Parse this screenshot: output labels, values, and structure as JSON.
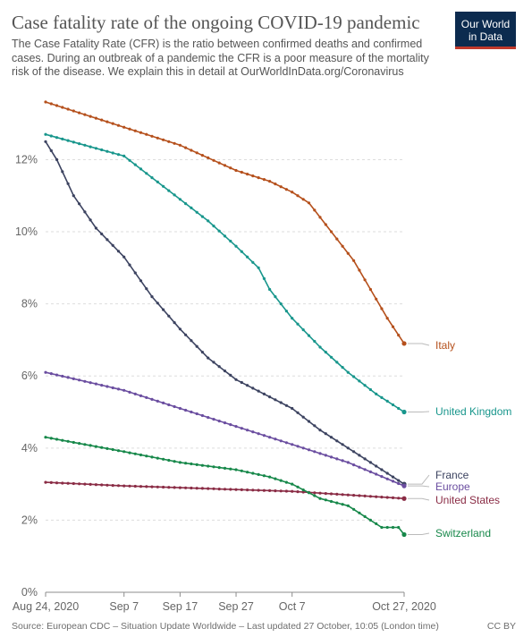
{
  "header": {
    "title": "Case fatality rate of the ongoing COVID-19 pandemic",
    "subtitle": "The Case Fatality Rate (CFR) is the ratio between confirmed deaths and confirmed cases. During an outbreak of a pandemic the CFR is a poor measure of the mortality risk of the disease. We explain this in detail at OurWorldInData.org/Coronavirus",
    "logo_line1": "Our World",
    "logo_line2": "in Data"
  },
  "footer": {
    "source": "Source: European CDC – Situation Update Worldwide – Last updated 27 October, 10:05 (London time)",
    "license": "CC BY"
  },
  "chart_data": {
    "type": "line",
    "title": "Case fatality rate of the ongoing COVID-19 pandemic",
    "x_ticks": [
      {
        "date": "2020-08-24",
        "label": "Aug 24, 2020"
      },
      {
        "date": "2020-09-07",
        "label": "Sep 7"
      },
      {
        "date": "2020-09-17",
        "label": "Sep 17"
      },
      {
        "date": "2020-09-27",
        "label": "Sep 27"
      },
      {
        "date": "2020-10-07",
        "label": "Oct 7"
      },
      {
        "date": "2020-10-27",
        "label": "Oct 27, 2020"
      }
    ],
    "xlim": [
      "2020-08-24",
      "2020-10-27"
    ],
    "y_ticks": [
      {
        "value": 0,
        "label": "0%"
      },
      {
        "value": 2,
        "label": "2%"
      },
      {
        "value": 4,
        "label": "4%"
      },
      {
        "value": 6,
        "label": "6%"
      },
      {
        "value": 8,
        "label": "8%"
      },
      {
        "value": 10,
        "label": "10%"
      },
      {
        "value": 12,
        "label": "12%"
      }
    ],
    "ylim": [
      0,
      13.5
    ],
    "grid": "horizontal-dashed",
    "legend": "right-end-labels",
    "series": [
      {
        "name": "Italy",
        "color": "#b5501c",
        "points": [
          [
            "2020-08-24",
            13.6
          ],
          [
            "2020-08-30",
            13.3
          ],
          [
            "2020-09-07",
            12.9
          ],
          [
            "2020-09-17",
            12.4
          ],
          [
            "2020-09-27",
            11.7
          ],
          [
            "2020-10-03",
            11.4
          ],
          [
            "2020-10-07",
            11.1
          ],
          [
            "2020-10-10",
            10.8
          ],
          [
            "2020-10-14",
            10.0
          ],
          [
            "2020-10-18",
            9.2
          ],
          [
            "2020-10-21",
            8.4
          ],
          [
            "2020-10-24",
            7.6
          ],
          [
            "2020-10-27",
            6.9
          ]
        ]
      },
      {
        "name": "United Kingdom",
        "color": "#18968c",
        "points": [
          [
            "2020-08-24",
            12.7
          ],
          [
            "2020-08-31",
            12.4
          ],
          [
            "2020-09-07",
            12.1
          ],
          [
            "2020-09-12",
            11.5
          ],
          [
            "2020-09-17",
            10.9
          ],
          [
            "2020-09-22",
            10.3
          ],
          [
            "2020-09-27",
            9.6
          ],
          [
            "2020-10-01",
            9.0
          ],
          [
            "2020-10-03",
            8.4
          ],
          [
            "2020-10-07",
            7.6
          ],
          [
            "2020-10-12",
            6.8
          ],
          [
            "2020-10-17",
            6.1
          ],
          [
            "2020-10-22",
            5.5
          ],
          [
            "2020-10-27",
            5.0
          ]
        ]
      },
      {
        "name": "France",
        "color": "#3c4360",
        "points": [
          [
            "2020-08-24",
            12.5
          ],
          [
            "2020-08-26",
            12.0
          ],
          [
            "2020-08-29",
            11.0
          ],
          [
            "2020-09-02",
            10.1
          ],
          [
            "2020-09-07",
            9.3
          ],
          [
            "2020-09-12",
            8.2
          ],
          [
            "2020-09-17",
            7.3
          ],
          [
            "2020-09-22",
            6.5
          ],
          [
            "2020-09-27",
            5.9
          ],
          [
            "2020-10-02",
            5.5
          ],
          [
            "2020-10-07",
            5.1
          ],
          [
            "2020-10-12",
            4.5
          ],
          [
            "2020-10-17",
            4.0
          ],
          [
            "2020-10-22",
            3.5
          ],
          [
            "2020-10-27",
            3.0
          ]
        ]
      },
      {
        "name": "Europe",
        "color": "#6b4ea0",
        "points": [
          [
            "2020-08-24",
            6.1
          ],
          [
            "2020-09-07",
            5.6
          ],
          [
            "2020-09-17",
            5.1
          ],
          [
            "2020-09-27",
            4.6
          ],
          [
            "2020-10-07",
            4.1
          ],
          [
            "2020-10-17",
            3.6
          ],
          [
            "2020-10-27",
            2.95
          ]
        ]
      },
      {
        "name": "United States",
        "color": "#8a2c45",
        "points": [
          [
            "2020-08-24",
            3.05
          ],
          [
            "2020-09-07",
            2.95
          ],
          [
            "2020-09-17",
            2.9
          ],
          [
            "2020-09-27",
            2.85
          ],
          [
            "2020-10-07",
            2.8
          ],
          [
            "2020-10-17",
            2.7
          ],
          [
            "2020-10-27",
            2.6
          ]
        ]
      },
      {
        "name": "Switzerland",
        "color": "#17884a",
        "points": [
          [
            "2020-08-24",
            4.3
          ],
          [
            "2020-08-31",
            4.1
          ],
          [
            "2020-09-07",
            3.9
          ],
          [
            "2020-09-17",
            3.6
          ],
          [
            "2020-09-27",
            3.4
          ],
          [
            "2020-10-03",
            3.2
          ],
          [
            "2020-10-07",
            3.0
          ],
          [
            "2020-10-12",
            2.6
          ],
          [
            "2020-10-17",
            2.4
          ],
          [
            "2020-10-20",
            2.1
          ],
          [
            "2020-10-23",
            1.8
          ],
          [
            "2020-10-26",
            1.8
          ],
          [
            "2020-10-27",
            1.6
          ]
        ]
      }
    ]
  }
}
